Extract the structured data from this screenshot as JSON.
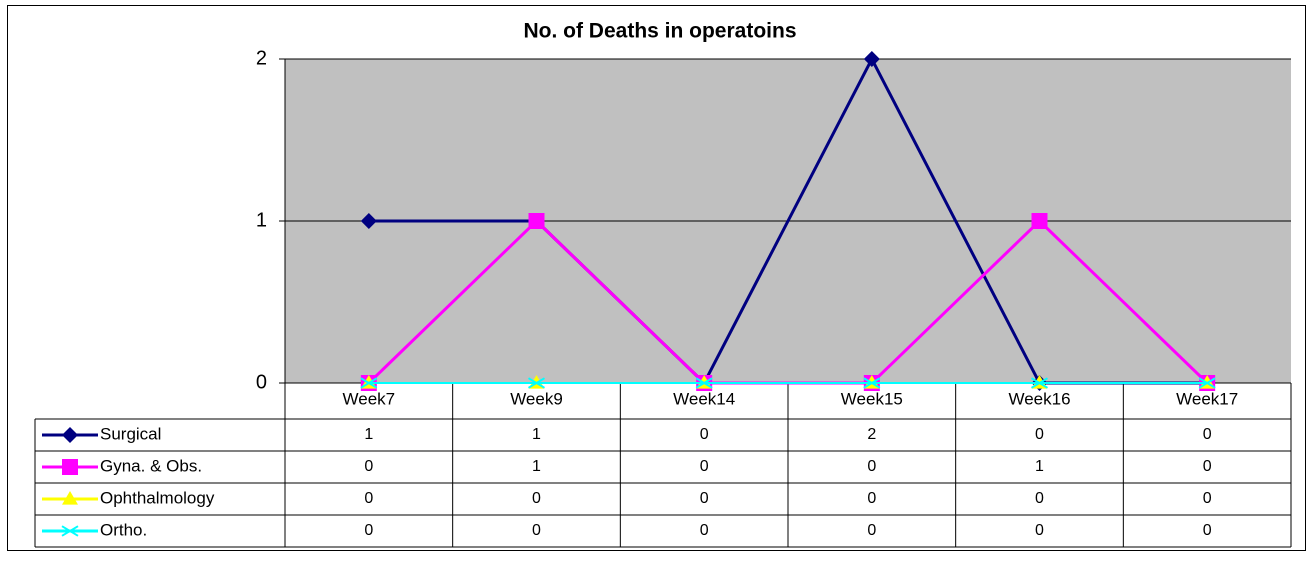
{
  "chart_data": {
    "type": "line",
    "title": "No. of Deaths in operatoins",
    "categories": [
      "Week7",
      "Week9",
      "Week14",
      "Week15",
      "Week16",
      "Week17"
    ],
    "series": [
      {
        "name": "Surgical",
        "color": "#000080",
        "marker": "diamond",
        "values": [
          1,
          1,
          0,
          2,
          0,
          0
        ]
      },
      {
        "name": "Gyna. & Obs.",
        "color": "#ff00ff",
        "marker": "square",
        "values": [
          0,
          1,
          0,
          0,
          1,
          0
        ]
      },
      {
        "name": "Ophthalmology",
        "color": "#ffff00",
        "marker": "triangle",
        "values": [
          0,
          0,
          0,
          0,
          0,
          0
        ]
      },
      {
        "name": "Ortho.",
        "color": "#00ffff",
        "marker": "x",
        "values": [
          0,
          0,
          0,
          0,
          0,
          0
        ]
      }
    ],
    "ylim": [
      0,
      2
    ],
    "yticks": [
      0,
      1,
      2
    ],
    "grid": true,
    "plot_background": "#c0c0c0",
    "data_table": true
  }
}
